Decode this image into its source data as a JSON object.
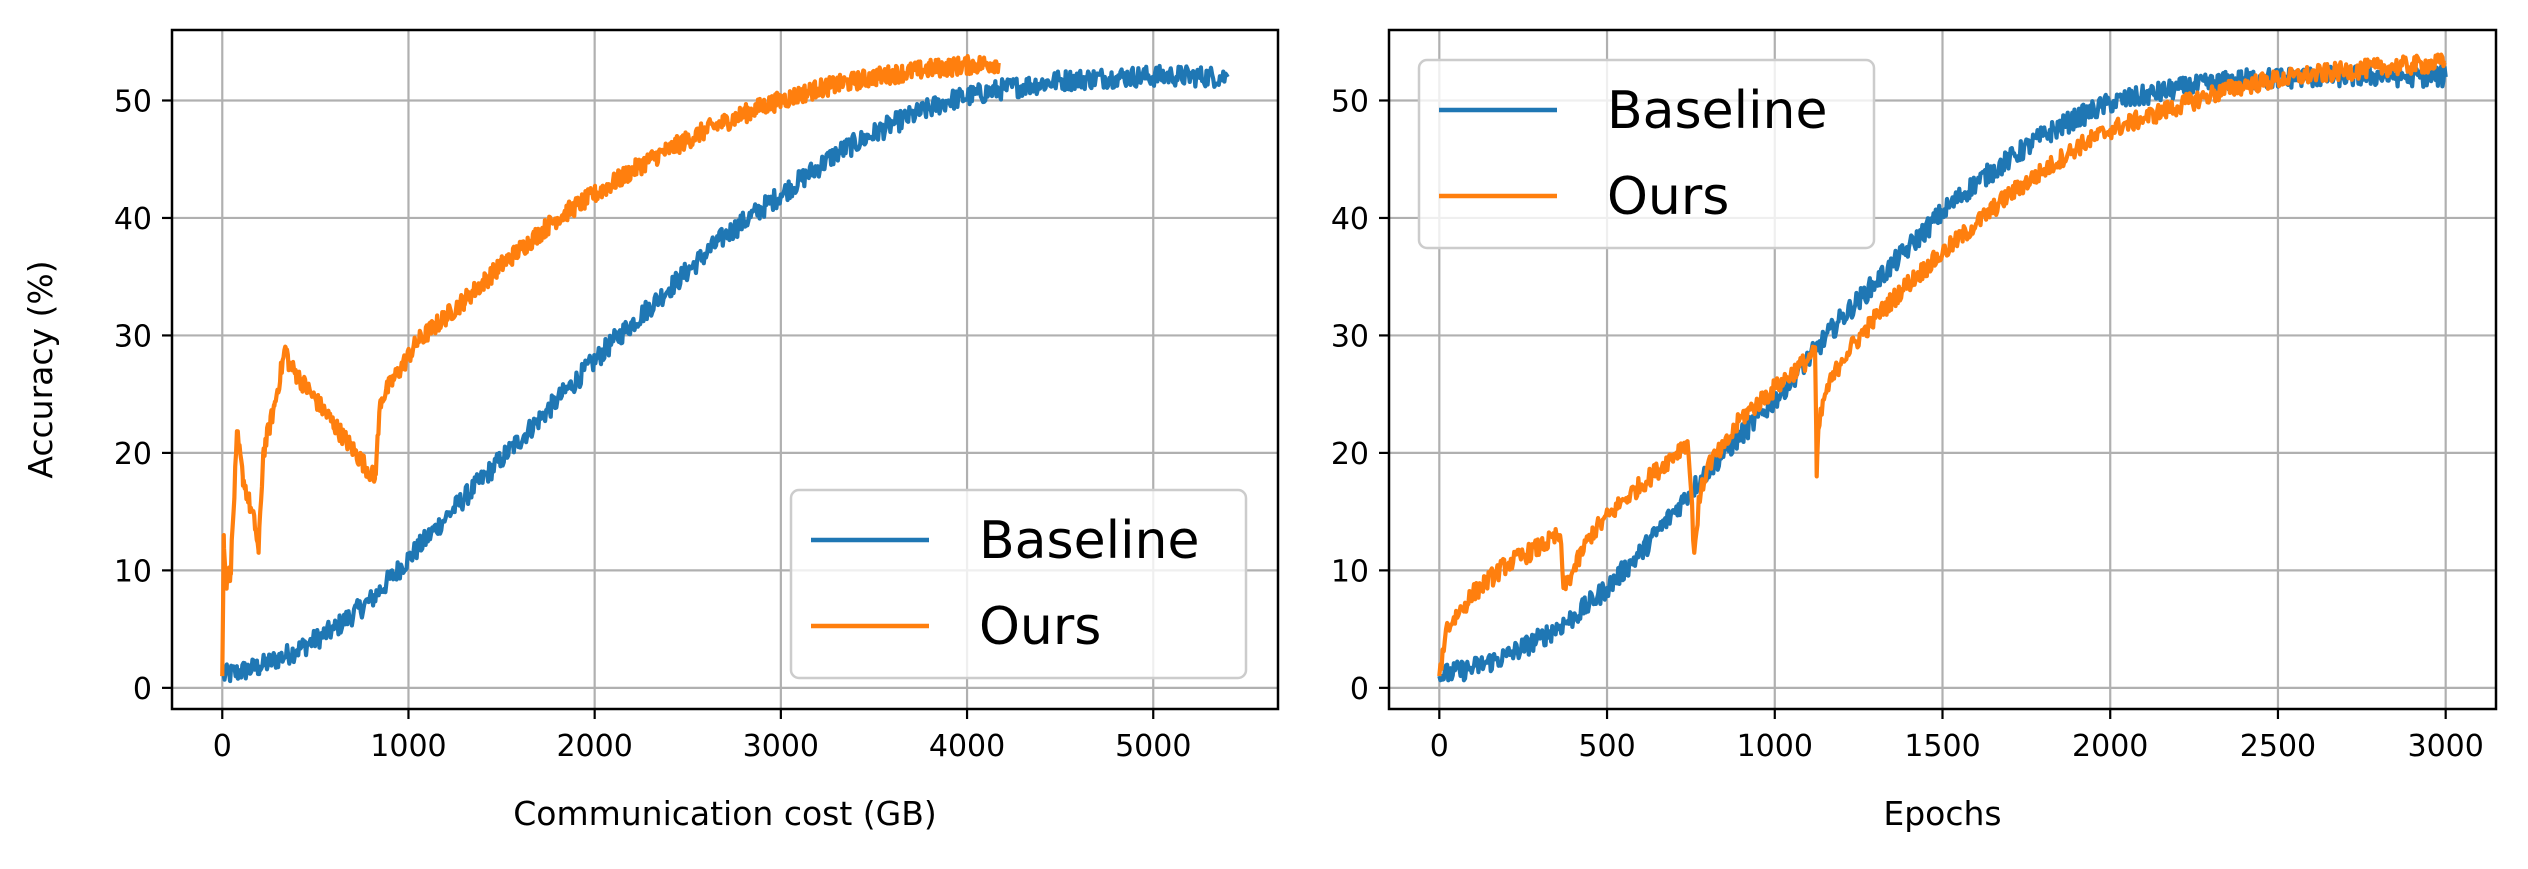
{
  "colors": {
    "baseline": "#1f77b4",
    "ours": "#ff7f0e",
    "grid": "#b0b0b0"
  },
  "chart_data": [
    {
      "type": "line",
      "xlabel": "Communication cost (GB)",
      "ylabel": "Accuracy (%)",
      "xlim": [
        -270,
        5670
      ],
      "ylim": [
        -1.8,
        56
      ],
      "xticks": [
        0,
        1000,
        2000,
        3000,
        4000,
        5000
      ],
      "yticks": [
        0,
        10,
        20,
        30,
        40,
        50
      ],
      "grid": true,
      "legend_position": "lower-right",
      "series": [
        {
          "name": "Baseline",
          "color": "#1f77b4",
          "noise": 0.9,
          "points": [
            [
              0,
              1
            ],
            [
              200,
              1.8
            ],
            [
              400,
              3.2
            ],
            [
              600,
              5
            ],
            [
              800,
              7.5
            ],
            [
              1000,
              11
            ],
            [
              1200,
              14.5
            ],
            [
              1500,
              19.5
            ],
            [
              1800,
              24.5
            ],
            [
              2100,
              29.5
            ],
            [
              2400,
              34
            ],
            [
              2700,
              38.5
            ],
            [
              3000,
              42
            ],
            [
              3300,
              45.5
            ],
            [
              3600,
              48
            ],
            [
              3900,
              50
            ],
            [
              4200,
              51
            ],
            [
              4500,
              51.7
            ],
            [
              4800,
              52
            ],
            [
              5100,
              52.1
            ],
            [
              5400,
              52
            ]
          ]
        },
        {
          "name": "Ours",
          "color": "#ff7f0e",
          "noise": 0.8,
          "points": [
            [
              0,
              1
            ],
            [
              8,
              13
            ],
            [
              20,
              9
            ],
            [
              45,
              10
            ],
            [
              80,
              21.5
            ],
            [
              110,
              18
            ],
            [
              180,
              13.5
            ],
            [
              195,
              11.5
            ],
            [
              220,
              20
            ],
            [
              280,
              24
            ],
            [
              340,
              29
            ],
            [
              360,
              27.5
            ],
            [
              820,
              17.8
            ],
            [
              830,
              20
            ],
            [
              850,
              24.5
            ],
            [
              950,
              27
            ],
            [
              1050,
              29.5
            ],
            [
              1300,
              33
            ],
            [
              1500,
              36
            ],
            [
              1800,
              40
            ],
            [
              2000,
              42
            ],
            [
              2300,
              45
            ],
            [
              2600,
              47.5
            ],
            [
              2900,
              49.5
            ],
            [
              3200,
              51
            ],
            [
              3500,
              52
            ],
            [
              3800,
              52.7
            ],
            [
              4000,
              53
            ],
            [
              4170,
              53.2
            ]
          ]
        }
      ]
    },
    {
      "type": "line",
      "xlabel": "Epochs",
      "ylabel": "",
      "xlim": [
        -150,
        3150
      ],
      "ylim": [
        -1.8,
        56
      ],
      "xticks": [
        0,
        500,
        1000,
        1500,
        2000,
        2500,
        3000
      ],
      "yticks": [
        0,
        10,
        20,
        30,
        40,
        50
      ],
      "grid": true,
      "legend_position": "upper-left",
      "series": [
        {
          "name": "Baseline",
          "color": "#1f77b4",
          "noise": 0.9,
          "points": [
            [
              0,
              1
            ],
            [
              100,
              1.7
            ],
            [
              200,
              2.7
            ],
            [
              300,
              4.2
            ],
            [
              400,
              6
            ],
            [
              500,
              8.5
            ],
            [
              600,
              11.5
            ],
            [
              700,
              15
            ],
            [
              800,
              18.5
            ],
            [
              900,
              21.5
            ],
            [
              1000,
              24.5
            ],
            [
              1100,
              28
            ],
            [
              1200,
              31.5
            ],
            [
              1300,
              34.5
            ],
            [
              1400,
              37.5
            ],
            [
              1500,
              40.5
            ],
            [
              1600,
              43
            ],
            [
              1700,
              45
            ],
            [
              1800,
              47
            ],
            [
              1900,
              48.5
            ],
            [
              2000,
              49.8
            ],
            [
              2200,
              51
            ],
            [
              2400,
              51.8
            ],
            [
              2600,
              52
            ],
            [
              2800,
              52.1
            ],
            [
              3000,
              52
            ]
          ]
        },
        {
          "name": "Ours",
          "color": "#ff7f0e",
          "noise": 0.8,
          "points": [
            [
              0,
              1
            ],
            [
              20,
              5
            ],
            [
              100,
              8
            ],
            [
              200,
              10.5
            ],
            [
              300,
              12
            ],
            [
              360,
              13
            ],
            [
              370,
              8.5
            ],
            [
              400,
              10
            ],
            [
              450,
              13
            ],
            [
              550,
              16
            ],
            [
              650,
              18.5
            ],
            [
              740,
              21
            ],
            [
              750,
              17
            ],
            [
              760,
              11.5
            ],
            [
              775,
              16
            ],
            [
              800,
              19
            ],
            [
              850,
              20.5
            ],
            [
              900,
              23
            ],
            [
              1000,
              25.5
            ],
            [
              1100,
              28
            ],
            [
              1120,
              29
            ],
            [
              1125,
              18
            ],
            [
              1130,
              22
            ],
            [
              1150,
              25
            ],
            [
              1200,
              28
            ],
            [
              1300,
              31.5
            ],
            [
              1400,
              34.5
            ],
            [
              1500,
              37
            ],
            [
              1600,
              39.5
            ],
            [
              1700,
              42
            ],
            [
              1800,
              44
            ],
            [
              1900,
              46
            ],
            [
              2000,
              47.5
            ],
            [
              2100,
              48.5
            ],
            [
              2200,
              49.5
            ],
            [
              2300,
              50.5
            ],
            [
              2400,
              51.3
            ],
            [
              2500,
              51.8
            ],
            [
              2600,
              52.2
            ],
            [
              2700,
              52.5
            ],
            [
              2800,
              52.8
            ],
            [
              3000,
              53.2
            ]
          ]
        }
      ]
    }
  ]
}
